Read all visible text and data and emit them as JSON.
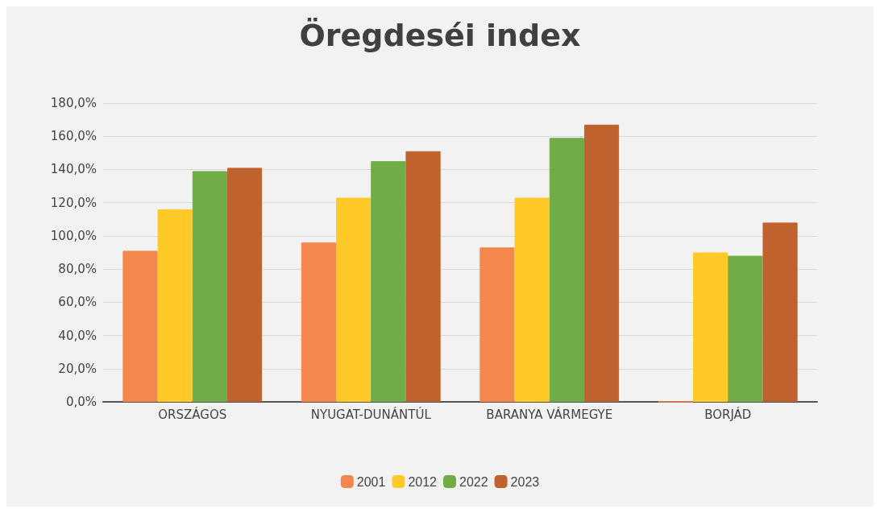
{
  "chart_data": {
    "type": "bar",
    "title": "Öregdeséi index",
    "categories": [
      "ORSZÁGOS",
      "NYUGAT-DUNÁNTÚL",
      "BARANYA VÁRMEGYE",
      "BORJÁD"
    ],
    "series": [
      {
        "name": "2001",
        "color": "#f4874b",
        "values": [
          91,
          96,
          93,
          0
        ]
      },
      {
        "name": "2012",
        "color": "#ffc928",
        "values": [
          116,
          123,
          123,
          90
        ]
      },
      {
        "name": "2022",
        "color": "#70ad47",
        "values": [
          139,
          145,
          159,
          88
        ]
      },
      {
        "name": "2023",
        "color": "#c0622d",
        "values": [
          141,
          151,
          167,
          108
        ]
      }
    ],
    "ylim": [
      0,
      180
    ],
    "yticks": [
      {
        "value": 0,
        "label": "0,0%"
      },
      {
        "value": 20,
        "label": "20,0%"
      },
      {
        "value": 40,
        "label": "40,0%"
      },
      {
        "value": 60,
        "label": "60,0%"
      },
      {
        "value": 80,
        "label": "80,0%"
      },
      {
        "value": 100,
        "label": "100,0%"
      },
      {
        "value": 120,
        "label": "120,0%"
      },
      {
        "value": 140,
        "label": "140,0%"
      },
      {
        "value": 160,
        "label": "160,0%"
      },
      {
        "value": 180,
        "label": "180,0%"
      }
    ],
    "grid": "y",
    "legend": "bottom"
  }
}
